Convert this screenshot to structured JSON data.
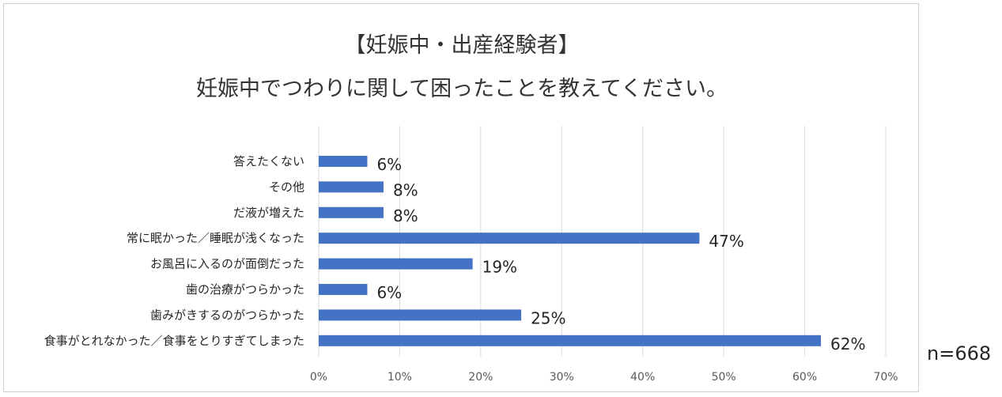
{
  "titles": {
    "line1": "【妊娠中・出産経験者】",
    "line2": "妊娠中でつわりに関して困ったことを教えてください。"
  },
  "note": "n=668",
  "colors": {
    "bar": "#4472C4",
    "grid": "#d9d9d9",
    "text": "#262626",
    "axis_text": "#595959"
  },
  "chart_data": {
    "type": "bar",
    "orientation": "horizontal",
    "categories": [
      "答えたくない",
      "その他",
      "だ液が増えた",
      "常に眠かった／睡眠が浅くなった",
      "お風呂に入るのが面倒だった",
      "歯の治療がつらかった",
      "歯みがきするのがつらかった",
      "食事がとれなかった／食事をとりすぎてしまった"
    ],
    "values": [
      6,
      8,
      8,
      47,
      19,
      6,
      25,
      62
    ],
    "data_labels": [
      "6%",
      "8%",
      "8%",
      "47%",
      "19%",
      "6%",
      "25%",
      "62%"
    ],
    "xlim": [
      0,
      70
    ],
    "x_ticks": [
      0,
      10,
      20,
      30,
      40,
      50,
      60,
      70
    ],
    "x_tick_labels": [
      "0%",
      "10%",
      "20%",
      "30%",
      "40%",
      "50%",
      "60%",
      "70%"
    ],
    "grid": true,
    "legend": "none"
  }
}
